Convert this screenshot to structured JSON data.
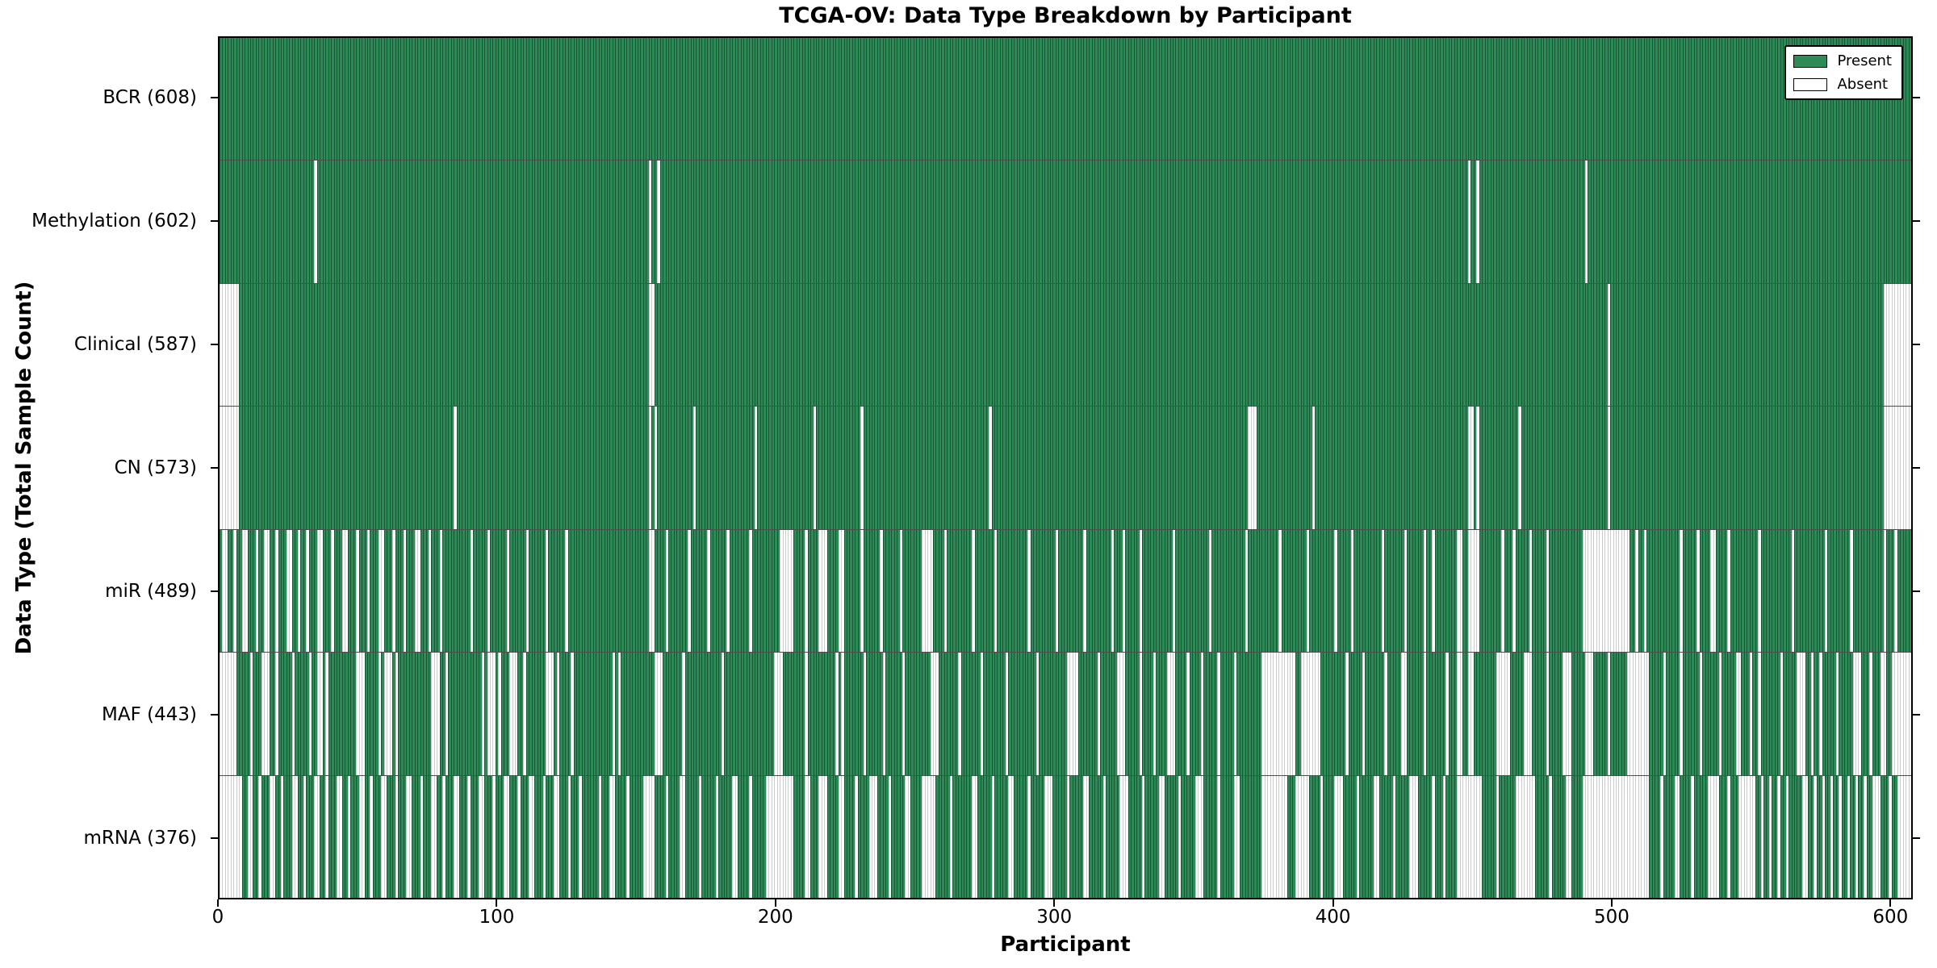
{
  "title": "TCGA-OV: Data Type Breakdown by Participant",
  "xlabel": "Participant",
  "ylabel": "Data Type (Total Sample Count)",
  "legend": {
    "present_label": "Present",
    "absent_label": "Absent",
    "position": "upper right"
  },
  "colors": {
    "present": "#2e8b57",
    "absent": "#ffffff",
    "edge": "#000000"
  },
  "chart_data": {
    "type": "heatmap",
    "title": "TCGA-OV: Data Type Breakdown by Participant",
    "xlabel": "Participant",
    "ylabel": "Data Type (Total Sample Count)",
    "n_participants": 608,
    "xlim": [
      0,
      608
    ],
    "x_ticks": [
      0,
      100,
      200,
      300,
      400,
      500,
      600
    ],
    "grid": false,
    "legend_position": "upper right",
    "cell_states": [
      "Present",
      "Absent"
    ],
    "rows": [
      {
        "name": "BCR",
        "count": 608,
        "label": "BCR (608)",
        "absent_ranges": []
      },
      {
        "name": "Methylation",
        "count": 602,
        "label": "Methylation (602)",
        "absent_ranges": [
          [
            34,
            34
          ],
          [
            154,
            154
          ],
          [
            157,
            157
          ],
          [
            448,
            448
          ],
          [
            451,
            451
          ],
          [
            490,
            490
          ]
        ]
      },
      {
        "name": "Clinical",
        "count": 587,
        "label": "Clinical (587)",
        "absent_ranges": [
          [
            0,
            6
          ],
          [
            154,
            155
          ],
          [
            498,
            498
          ],
          [
            597,
            607
          ]
        ]
      },
      {
        "name": "CN",
        "count": 573,
        "label": "CN (573)",
        "absent_ranges": [
          [
            0,
            6
          ],
          [
            84,
            84
          ],
          [
            154,
            154
          ],
          [
            156,
            156
          ],
          [
            170,
            170
          ],
          [
            192,
            192
          ],
          [
            213,
            213
          ],
          [
            230,
            230
          ],
          [
            276,
            276
          ],
          [
            369,
            371
          ],
          [
            392,
            392
          ],
          [
            448,
            449
          ],
          [
            451,
            451
          ],
          [
            466,
            466
          ],
          [
            498,
            498
          ],
          [
            597,
            607
          ]
        ]
      },
      {
        "name": "miR",
        "count": 489,
        "label": "miR (489)",
        "absent_ranges": [
          [
            1,
            2
          ],
          [
            5,
            5
          ],
          [
            8,
            9
          ],
          [
            13,
            13
          ],
          [
            16,
            17
          ],
          [
            20,
            20
          ],
          [
            24,
            25
          ],
          [
            28,
            28
          ],
          [
            31,
            31
          ],
          [
            35,
            36
          ],
          [
            40,
            40
          ],
          [
            44,
            45
          ],
          [
            49,
            49
          ],
          [
            53,
            53
          ],
          [
            57,
            58
          ],
          [
            62,
            62
          ],
          [
            66,
            66
          ],
          [
            70,
            71
          ],
          [
            75,
            75
          ],
          [
            79,
            79
          ],
          [
            90,
            90
          ],
          [
            96,
            96
          ],
          [
            103,
            103
          ],
          [
            110,
            110
          ],
          [
            117,
            117
          ],
          [
            124,
            124
          ],
          [
            154,
            155
          ],
          [
            160,
            160
          ],
          [
            168,
            168
          ],
          [
            175,
            175
          ],
          [
            182,
            182
          ],
          [
            190,
            190
          ],
          [
            201,
            205
          ],
          [
            210,
            210
          ],
          [
            215,
            217
          ],
          [
            222,
            223
          ],
          [
            230,
            230
          ],
          [
            237,
            237
          ],
          [
            244,
            244
          ],
          [
            252,
            255
          ],
          [
            260,
            260
          ],
          [
            270,
            270
          ],
          [
            278,
            278
          ],
          [
            290,
            290
          ],
          [
            300,
            300
          ],
          [
            310,
            310
          ],
          [
            320,
            320
          ],
          [
            324,
            324
          ],
          [
            330,
            330
          ],
          [
            342,
            342
          ],
          [
            355,
            355
          ],
          [
            368,
            368
          ],
          [
            380,
            380
          ],
          [
            390,
            390
          ],
          [
            400,
            400
          ],
          [
            406,
            406
          ],
          [
            417,
            417
          ],
          [
            425,
            425
          ],
          [
            432,
            432
          ],
          [
            435,
            435
          ],
          [
            444,
            445
          ],
          [
            448,
            451
          ],
          [
            460,
            460
          ],
          [
            464,
            464
          ],
          [
            470,
            470
          ],
          [
            476,
            476
          ],
          [
            489,
            505
          ],
          [
            508,
            508
          ],
          [
            511,
            511
          ],
          [
            524,
            524
          ],
          [
            530,
            530
          ],
          [
            535,
            536
          ],
          [
            541,
            541
          ],
          [
            552,
            552
          ],
          [
            564,
            564
          ],
          [
            576,
            576
          ],
          [
            585,
            585
          ],
          [
            597,
            597
          ],
          [
            601,
            601
          ]
        ]
      },
      {
        "name": "MAF",
        "count": 443,
        "label": "MAF (443)",
        "absent_ranges": [
          [
            0,
            5
          ],
          [
            11,
            11
          ],
          [
            15,
            17
          ],
          [
            20,
            20
          ],
          [
            26,
            26
          ],
          [
            32,
            32
          ],
          [
            35,
            36
          ],
          [
            38,
            38
          ],
          [
            49,
            51
          ],
          [
            57,
            57
          ],
          [
            59,
            61
          ],
          [
            63,
            63
          ],
          [
            76,
            78
          ],
          [
            81,
            81
          ],
          [
            94,
            94
          ],
          [
            96,
            98
          ],
          [
            100,
            100
          ],
          [
            104,
            106
          ],
          [
            109,
            109
          ],
          [
            117,
            119
          ],
          [
            121,
            121
          ],
          [
            126,
            126
          ],
          [
            141,
            141
          ],
          [
            143,
            143
          ],
          [
            156,
            158
          ],
          [
            166,
            166
          ],
          [
            180,
            180
          ],
          [
            199,
            201
          ],
          [
            210,
            210
          ],
          [
            221,
            221
          ],
          [
            223,
            223
          ],
          [
            231,
            231
          ],
          [
            238,
            238
          ],
          [
            245,
            245
          ],
          [
            255,
            257
          ],
          [
            265,
            265
          ],
          [
            273,
            273
          ],
          [
            282,
            282
          ],
          [
            293,
            293
          ],
          [
            304,
            307
          ],
          [
            315,
            315
          ],
          [
            322,
            324
          ],
          [
            330,
            330
          ],
          [
            335,
            335
          ],
          [
            340,
            342
          ],
          [
            347,
            347
          ],
          [
            352,
            352
          ],
          [
            358,
            358
          ],
          [
            364,
            364
          ],
          [
            374,
            385
          ],
          [
            388,
            394
          ],
          [
            404,
            404
          ],
          [
            410,
            410
          ],
          [
            418,
            418
          ],
          [
            424,
            425
          ],
          [
            432,
            432
          ],
          [
            440,
            440
          ],
          [
            444,
            445
          ],
          [
            448,
            449
          ],
          [
            458,
            462
          ],
          [
            468,
            470
          ],
          [
            476,
            476
          ],
          [
            482,
            484
          ],
          [
            490,
            492
          ],
          [
            498,
            498
          ],
          [
            505,
            512
          ],
          [
            518,
            518
          ],
          [
            524,
            524
          ],
          [
            531,
            531
          ],
          [
            538,
            538
          ],
          [
            544,
            545
          ],
          [
            549,
            549
          ],
          [
            552,
            552
          ],
          [
            560,
            560
          ],
          [
            566,
            568
          ],
          [
            571,
            571
          ],
          [
            574,
            574
          ],
          [
            580,
            580
          ],
          [
            586,
            588
          ],
          [
            592,
            592
          ],
          [
            596,
            597
          ],
          [
            600,
            607
          ]
        ]
      },
      {
        "name": "mRNA",
        "count": 376,
        "label": "mRNA (376)",
        "absent_ranges": [
          [
            0,
            7
          ],
          [
            10,
            11
          ],
          [
            14,
            14
          ],
          [
            18,
            19
          ],
          [
            22,
            22
          ],
          [
            26,
            27
          ],
          [
            30,
            30
          ],
          [
            34,
            35
          ],
          [
            38,
            38
          ],
          [
            42,
            43
          ],
          [
            46,
            46
          ],
          [
            50,
            51
          ],
          [
            54,
            54
          ],
          [
            58,
            59
          ],
          [
            63,
            63
          ],
          [
            67,
            68
          ],
          [
            72,
            72
          ],
          [
            76,
            77
          ],
          [
            80,
            80
          ],
          [
            84,
            85
          ],
          [
            89,
            89
          ],
          [
            93,
            94
          ],
          [
            98,
            98
          ],
          [
            102,
            103
          ],
          [
            107,
            107
          ],
          [
            111,
            112
          ],
          [
            116,
            116
          ],
          [
            120,
            121
          ],
          [
            125,
            125
          ],
          [
            129,
            129
          ],
          [
            136,
            136
          ],
          [
            140,
            141
          ],
          [
            146,
            146
          ],
          [
            152,
            155
          ],
          [
            160,
            160
          ],
          [
            165,
            166
          ],
          [
            172,
            172
          ],
          [
            178,
            178
          ],
          [
            184,
            185
          ],
          [
            190,
            190
          ],
          [
            196,
            205
          ],
          [
            210,
            211
          ],
          [
            215,
            217
          ],
          [
            222,
            223
          ],
          [
            228,
            228
          ],
          [
            233,
            235
          ],
          [
            240,
            240
          ],
          [
            246,
            247
          ],
          [
            252,
            256
          ],
          [
            262,
            262
          ],
          [
            270,
            271
          ],
          [
            277,
            277
          ],
          [
            283,
            284
          ],
          [
            290,
            290
          ],
          [
            296,
            298
          ],
          [
            304,
            304
          ],
          [
            310,
            311
          ],
          [
            317,
            317
          ],
          [
            323,
            325
          ],
          [
            331,
            331
          ],
          [
            337,
            338
          ],
          [
            344,
            344
          ],
          [
            350,
            352
          ],
          [
            358,
            358
          ],
          [
            364,
            365
          ],
          [
            374,
            382
          ],
          [
            386,
            390
          ],
          [
            395,
            395
          ],
          [
            400,
            402
          ],
          [
            408,
            408
          ],
          [
            414,
            415
          ],
          [
            421,
            421
          ],
          [
            427,
            429
          ],
          [
            435,
            435
          ],
          [
            439,
            439
          ],
          [
            444,
            452
          ],
          [
            458,
            458
          ],
          [
            465,
            471
          ],
          [
            477,
            477
          ],
          [
            483,
            484
          ],
          [
            489,
            512
          ],
          [
            517,
            517
          ],
          [
            522,
            523
          ],
          [
            528,
            528
          ],
          [
            534,
            537
          ],
          [
            541,
            541
          ],
          [
            545,
            550
          ],
          [
            553,
            553
          ],
          [
            556,
            556
          ],
          [
            559,
            559
          ],
          [
            562,
            562
          ],
          [
            568,
            569
          ],
          [
            572,
            572
          ],
          [
            575,
            575
          ],
          [
            578,
            578
          ],
          [
            581,
            581
          ],
          [
            584,
            584
          ],
          [
            587,
            587
          ],
          [
            590,
            590
          ],
          [
            593,
            595
          ],
          [
            599,
            599
          ],
          [
            602,
            607
          ]
        ]
      }
    ]
  }
}
